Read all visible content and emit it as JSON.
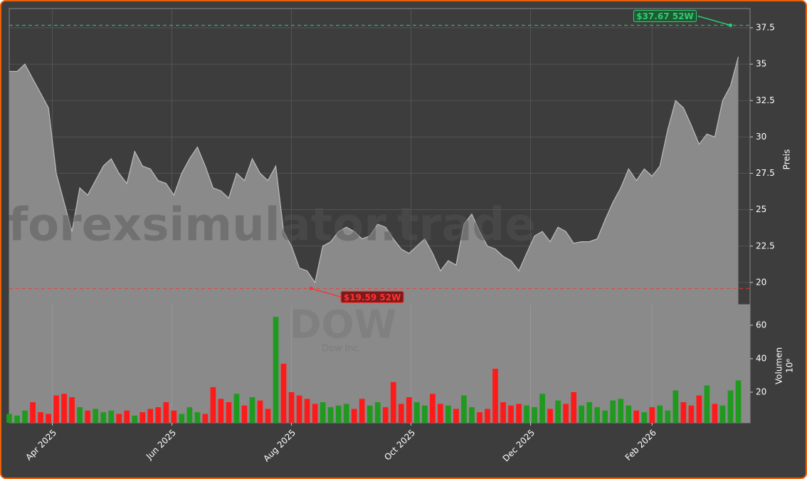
{
  "chart_data": [
    {
      "type": "area",
      "ylabel": "Preis",
      "color": "#bdbdbd",
      "fill": "#8a8a8a",
      "grid": true,
      "xlim": [
        0,
        378
      ],
      "ylim": [
        18.48,
        38.82
      ],
      "yticks": [
        20.0,
        22.5,
        25.0,
        27.5,
        30.0,
        32.5,
        35.0,
        37.5
      ],
      "x": [
        0,
        4,
        8,
        12,
        16,
        20,
        24,
        28,
        32,
        36,
        40,
        44,
        48,
        52,
        56,
        60,
        64,
        68,
        72,
        76,
        80,
        84,
        88,
        92,
        96,
        100,
        104,
        108,
        112,
        116,
        120,
        124,
        128,
        132,
        136,
        140,
        144,
        148,
        152,
        156,
        160,
        164,
        168,
        172,
        176,
        180,
        184,
        188,
        192,
        196,
        200,
        204,
        208,
        212,
        216,
        220,
        224,
        228,
        232,
        236,
        240,
        244,
        248,
        252,
        256,
        260,
        264,
        268,
        272,
        276,
        280,
        284,
        288,
        292,
        296,
        300,
        304,
        308,
        312,
        316,
        320,
        324,
        328,
        332,
        336,
        340,
        344,
        348,
        352,
        356,
        360,
        364,
        368,
        372
      ],
      "values": [
        34.5,
        34.5,
        35.0,
        34.0,
        33.0,
        32.0,
        27.5,
        25.5,
        23.5,
        26.5,
        26.0,
        27.0,
        28.0,
        28.5,
        27.5,
        26.8,
        29.0,
        28.0,
        27.8,
        27.0,
        26.8,
        26.0,
        27.5,
        28.5,
        29.3,
        28.0,
        26.5,
        26.3,
        25.8,
        27.5,
        27.0,
        28.5,
        27.5,
        27.0,
        28.0,
        23.5,
        22.5,
        21.0,
        20.8,
        20.0,
        22.5,
        22.8,
        23.5,
        23.8,
        23.5,
        23.0,
        23.2,
        24.0,
        23.8,
        23.0,
        22.3,
        22.0,
        22.5,
        23.0,
        22.0,
        20.8,
        21.5,
        21.2,
        24.0,
        24.7,
        23.5,
        22.5,
        22.3,
        21.8,
        21.5,
        20.8,
        22.0,
        23.2,
        23.5,
        22.8,
        23.8,
        23.5,
        22.7,
        22.8,
        22.8,
        23.0,
        24.3,
        25.5,
        26.5,
        27.8,
        27.0,
        27.8,
        27.3,
        28.0,
        30.5,
        32.5,
        32.0,
        30.8,
        29.5,
        30.2,
        30.0,
        32.5,
        33.5,
        35.5
      ],
      "annotations": [
        {
          "value": 37.67,
          "x": 368,
          "label": "$37.67 52W",
          "color": "#2ecc71"
        },
        {
          "value": 19.59,
          "x": 154,
          "label": "$19.59 52W",
          "color": "#ff3333"
        }
      ],
      "watermark": [
        "forexsimulator.trade",
        "DOW",
        "Dow Inc."
      ]
    },
    {
      "type": "bar",
      "ylabel": "Volumen",
      "unit": "10⁶",
      "up_color": "#1f9a1f",
      "down_color": "#ff1a1a",
      "xlim": [
        0,
        378
      ],
      "ylim": [
        1.7,
        72.3
      ],
      "yticks": [
        20,
        40,
        60
      ],
      "xticks": [
        {
          "value": 22,
          "label": "Apr 2025"
        },
        {
          "value": 83,
          "label": "Jun 2025"
        },
        {
          "value": 144,
          "label": "Aug 2025"
        },
        {
          "value": 205,
          "label": "Oct 2025"
        },
        {
          "value": 266,
          "label": "Dec 2025"
        },
        {
          "value": 328,
          "label": "Feb 2026"
        }
      ],
      "values": [
        7,
        6,
        9,
        14,
        8,
        7,
        18,
        19,
        17,
        11,
        9,
        10,
        8,
        9,
        7,
        9,
        6,
        8,
        10,
        11,
        14,
        9,
        7,
        11,
        8,
        7,
        23,
        16,
        14,
        19,
        12,
        17,
        15,
        10,
        65,
        37,
        20,
        18,
        16,
        13,
        14,
        11,
        12,
        13,
        10,
        16,
        12,
        14,
        11,
        26,
        13,
        17,
        14,
        12,
        19,
        13,
        12,
        10,
        18,
        11,
        8,
        10,
        34,
        14,
        12,
        13,
        12,
        11,
        19,
        10,
        15,
        13,
        20,
        12,
        14,
        11,
        9,
        15,
        16,
        12,
        9,
        8,
        11,
        12,
        9,
        21,
        14,
        12,
        18,
        24,
        13,
        12,
        21,
        27
      ]
    }
  ]
}
